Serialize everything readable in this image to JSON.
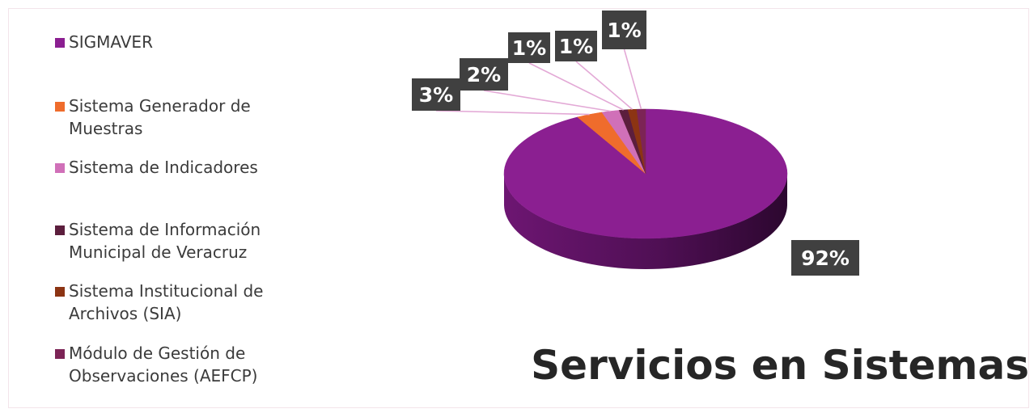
{
  "chart_data": {
    "type": "pie",
    "title": "Servicios en Sistemas",
    "legend_position": "left",
    "categories": [
      "SIGMAVER",
      "Sistema Generador de Muestras",
      "Sistema de Indicadores",
      "Sistema de Información Municipal de Veracruz",
      "Sistema Institucional de Archivos (SIA)",
      "Módulo de Gestión de Observaciones (AEFCP)"
    ],
    "values": [
      92,
      3,
      2,
      1,
      1,
      1
    ],
    "data_labels": [
      "92%",
      "3%",
      "2%",
      "1%",
      "1%",
      "1%"
    ],
    "colors": [
      "#8b1f91",
      "#ef6c2c",
      "#d070b8",
      "#5c1e3d",
      "#8c3413",
      "#7c2456"
    ]
  },
  "legend": {
    "items": [
      {
        "lines": [
          "SIGMAVER"
        ]
      },
      {
        "lines": [
          "Sistema Generador de",
          "Muestras"
        ]
      },
      {
        "lines": [
          "Sistema de Indicadores"
        ]
      },
      {
        "lines": [
          "Sistema de Información",
          "Municipal de Veracruz"
        ]
      },
      {
        "lines": [
          "Sistema Institucional de",
          "Archivos (SIA)"
        ]
      },
      {
        "lines": [
          "Módulo de Gestión de",
          "Observaciones (AEFCP)"
        ]
      }
    ]
  }
}
